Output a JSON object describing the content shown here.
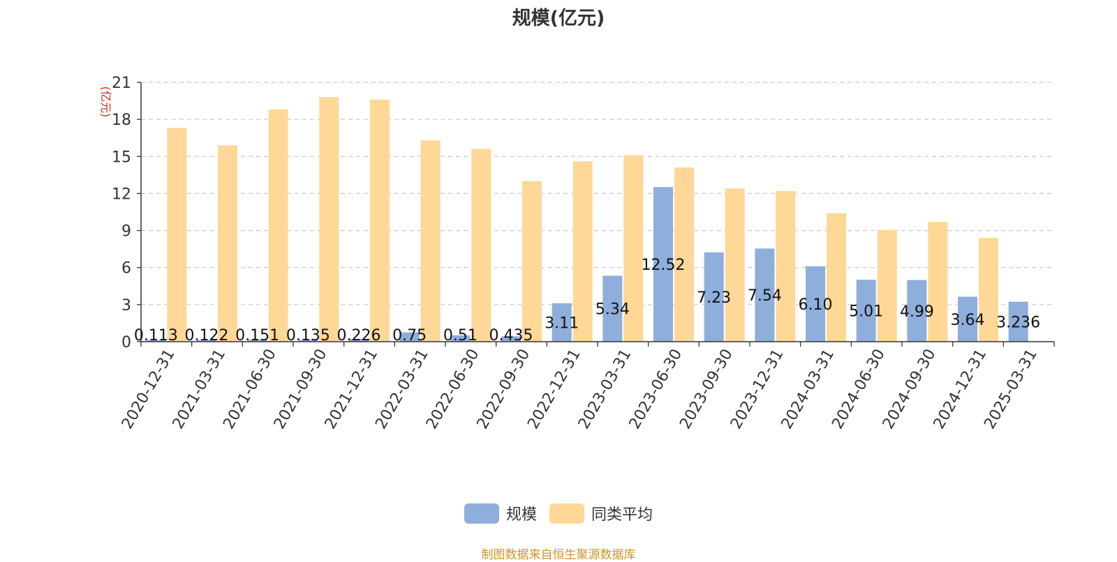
{
  "chart_data": {
    "type": "bar",
    "title": "规模(亿元)",
    "ylabel": "(亿元)",
    "ylim": [
      0,
      21
    ],
    "yticks": [
      0,
      3,
      6,
      9,
      12,
      15,
      18,
      21
    ],
    "grid": true,
    "legend_position": "bottom-center",
    "categories": [
      "2020-12-31",
      "2021-03-31",
      "2021-06-30",
      "2021-09-30",
      "2021-12-31",
      "2022-03-31",
      "2022-06-30",
      "2022-09-30",
      "2022-12-31",
      "2023-03-31",
      "2023-06-30",
      "2023-09-30",
      "2023-12-31",
      "2024-03-31",
      "2024-06-30",
      "2024-09-30",
      "2024-12-31",
      "2025-03-31"
    ],
    "series": [
      {
        "name": "规模",
        "color": "#8eaedb",
        "values": [
          0.113,
          0.122,
          0.151,
          0.135,
          0.226,
          0.75,
          0.51,
          0.435,
          3.11,
          5.34,
          12.52,
          7.23,
          7.54,
          6.1,
          5.01,
          4.99,
          3.64,
          3.236
        ],
        "labels": [
          "0.113",
          "0.122",
          "0.151",
          "0.135",
          "0.226",
          "0.75",
          "0.51",
          "0.435",
          "3.11",
          "5.34",
          "12.52",
          "7.23",
          "7.54",
          "6.10",
          "5.01",
          "4.99",
          "3.64",
          "3.236"
        ]
      },
      {
        "name": "同类平均",
        "color": "#ffd898",
        "values": [
          17.3,
          15.9,
          18.8,
          19.8,
          19.6,
          16.3,
          15.6,
          13.0,
          14.6,
          15.1,
          14.1,
          12.4,
          12.2,
          10.4,
          9.05,
          9.7,
          8.4,
          null
        ]
      }
    ]
  },
  "footer": {
    "source": "制图数据来自恒生聚源数据库"
  }
}
